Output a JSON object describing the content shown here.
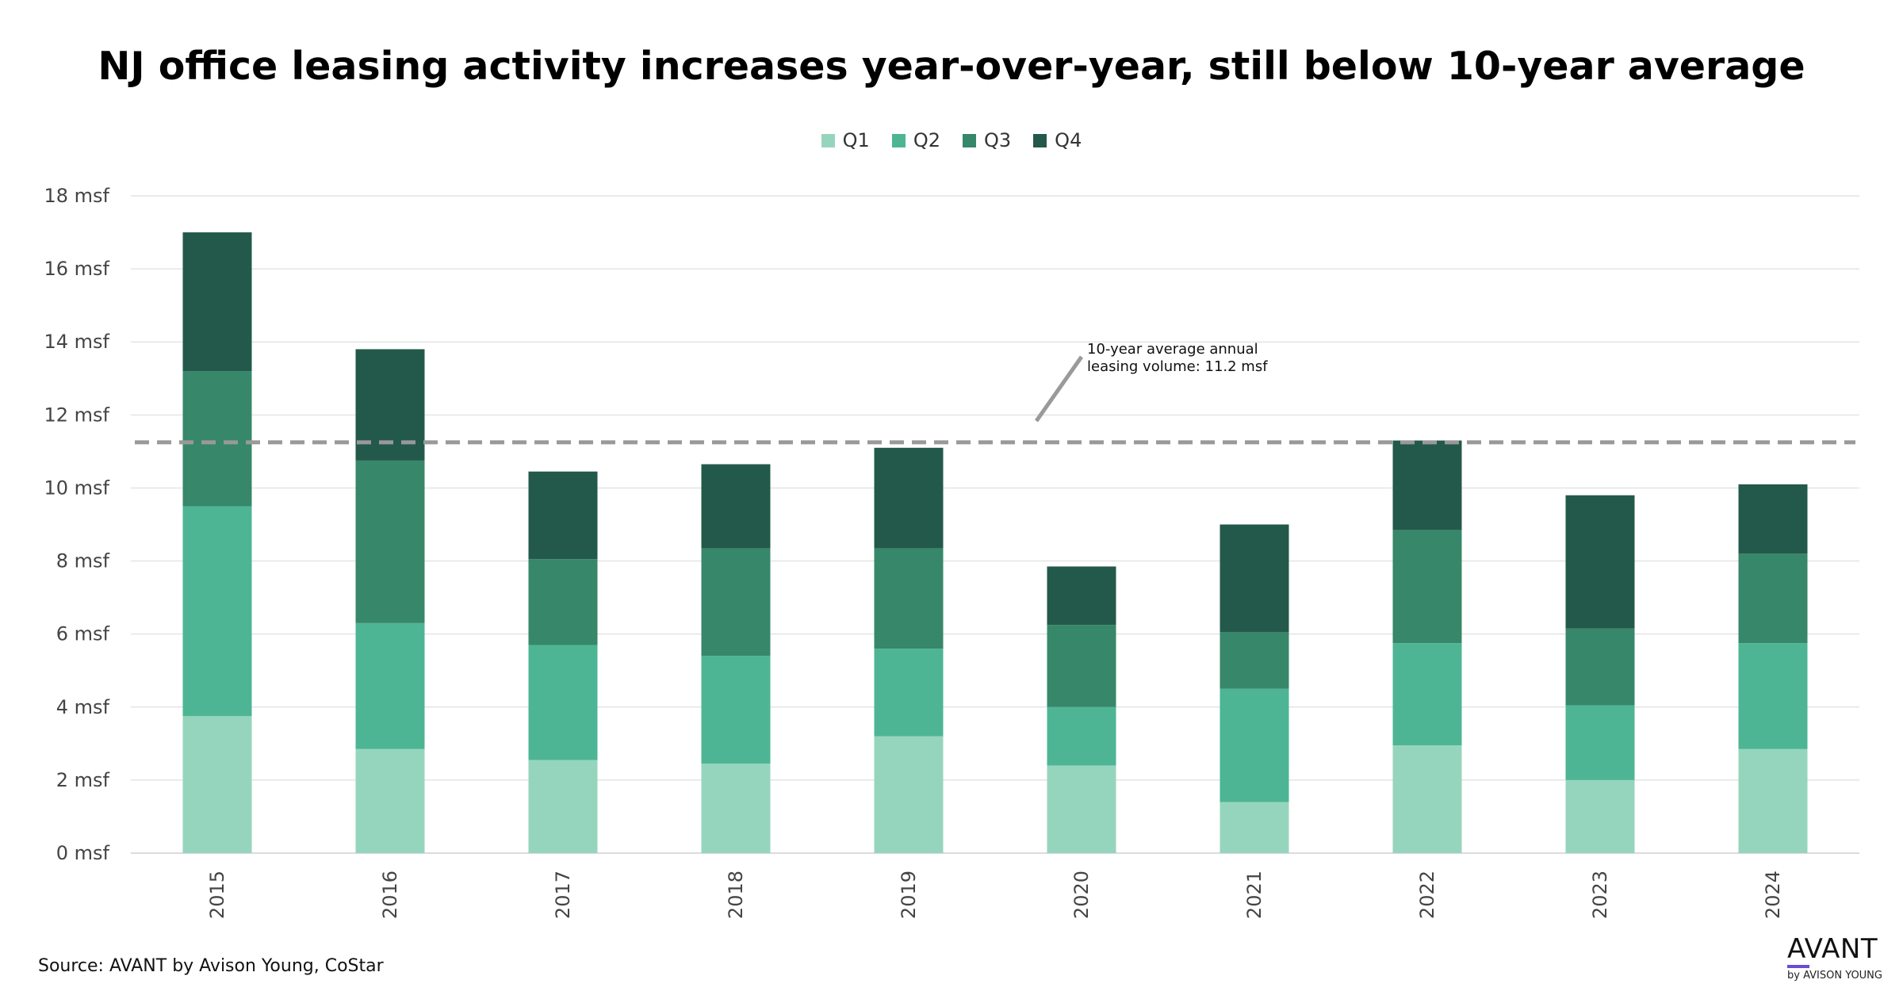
{
  "chart_data": {
    "type": "bar",
    "stacked": true,
    "title": "NJ office leasing activity increases year-over-year, still below 10-year average",
    "xlabel": "",
    "ylabel": "",
    "ylim": [
      0,
      18
    ],
    "y_ticks": [
      "0 msf",
      "2 msf",
      "4 msf",
      "6 msf",
      "8 msf",
      "10 msf",
      "12 msf",
      "14 msf",
      "16 msf",
      "18 msf"
    ],
    "grid": true,
    "legend_position": "top-center",
    "categories": [
      "2015",
      "2016",
      "2017",
      "2018",
      "2019",
      "2020",
      "2021",
      "2022",
      "2023",
      "2024"
    ],
    "series": [
      {
        "name": "Q1",
        "color": "#96d5bd",
        "values": [
          3.75,
          2.85,
          2.55,
          2.45,
          3.2,
          2.4,
          1.4,
          2.95,
          2.0,
          2.85
        ]
      },
      {
        "name": "Q2",
        "color": "#4db594",
        "values": [
          5.75,
          3.45,
          3.15,
          2.95,
          2.4,
          1.6,
          3.1,
          2.8,
          2.05,
          2.9
        ]
      },
      {
        "name": "Q3",
        "color": "#37876a",
        "values": [
          3.7,
          4.45,
          2.35,
          2.95,
          2.75,
          2.25,
          1.55,
          3.1,
          2.1,
          2.45
        ]
      },
      {
        "name": "Q4",
        "color": "#23594a",
        "values": [
          3.8,
          3.05,
          2.4,
          2.3,
          2.75,
          1.6,
          2.95,
          2.45,
          3.65,
          1.9
        ]
      }
    ],
    "reference_line": {
      "value": 11.25,
      "style": "dashed",
      "color": "#999999"
    },
    "annotation": {
      "lines": [
        "10-year average annual",
        "leasing volume: 11.2 msf"
      ]
    }
  },
  "source": "Source: AVANT by Avison Young, CoStar",
  "logo": {
    "main": "AVANT",
    "sub": "by AVISON YOUNG"
  }
}
